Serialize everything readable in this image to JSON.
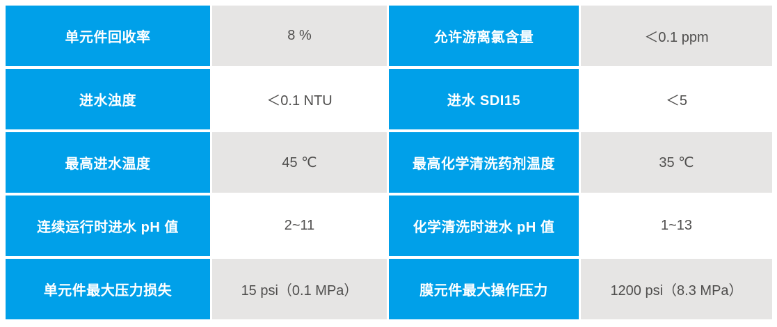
{
  "colors": {
    "accent_blue": "#00A0E9",
    "cell_gray": "#E6E5E4",
    "row_white": "#FFFFFF",
    "label_text": "#FFFFFF",
    "value_text": "#4F4E4D"
  },
  "table": {
    "rows": [
      {
        "left": {
          "label": "单元件回收率",
          "value": "8 %"
        },
        "right": {
          "label": "允许游离氯含量",
          "value": "＜0.1 ppm"
        }
      },
      {
        "left": {
          "label": "进水浊度",
          "value": "＜0.1 NTU"
        },
        "right": {
          "label": "进水 SDI15",
          "value": "＜5"
        }
      },
      {
        "left": {
          "label": "最高进水温度",
          "value": "45 ℃"
        },
        "right": {
          "label": "最高化学清洗药剂温度",
          "value": "35 ℃"
        }
      },
      {
        "left": {
          "label": "连续运行时进水 pH 值",
          "value": "2~11"
        },
        "right": {
          "label": "化学清洗时进水 pH 值",
          "value": "1~13"
        }
      },
      {
        "left": {
          "label": "单元件最大压力损失",
          "value": "15 psi（0.1 MPa）"
        },
        "right": {
          "label": "膜元件最大操作压力",
          "value": "1200 psi（8.3 MPa）"
        }
      }
    ]
  }
}
